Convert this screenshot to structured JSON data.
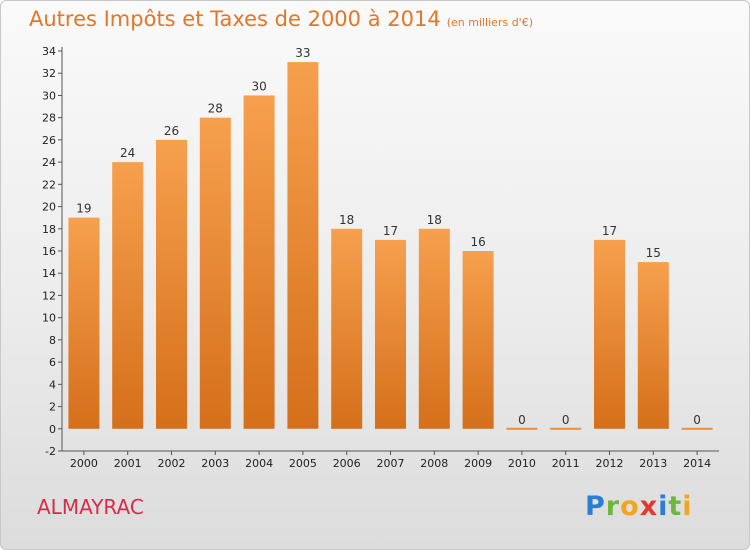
{
  "title": "Autres Impôts et Taxes de 2000 à 2014",
  "subtitle": "(en milliers d'€)",
  "commune": "ALMAYRAC",
  "logo": {
    "text": "Proxiti",
    "letters": [
      {
        "ch": "P",
        "color": "#2a7fd4"
      },
      {
        "ch": "r",
        "color": "#6cb83a"
      },
      {
        "ch": "o",
        "color": "#f3a51e"
      },
      {
        "ch": "x",
        "color": "#e2382e"
      },
      {
        "ch": "i",
        "color": "#2a7fd4"
      },
      {
        "ch": "t",
        "color": "#6cb83a"
      },
      {
        "ch": "i",
        "color": "#f3a51e"
      }
    ]
  },
  "chart_data": {
    "type": "bar",
    "categories": [
      "2000",
      "2001",
      "2002",
      "2003",
      "2004",
      "2005",
      "2006",
      "2007",
      "2008",
      "2009",
      "2010",
      "2011",
      "2012",
      "2013",
      "2014"
    ],
    "values": [
      19,
      24,
      26,
      28,
      30,
      33,
      18,
      17,
      18,
      16,
      0,
      0,
      17,
      15,
      0
    ],
    "data_labels": [
      "19",
      "24",
      "26",
      "28",
      "30",
      "33",
      "18",
      "17",
      "18",
      "16",
      "0",
      "0",
      "17",
      "15",
      "0"
    ],
    "ylim": [
      -2,
      34
    ],
    "yticks": [
      -2,
      0,
      2,
      4,
      6,
      8,
      10,
      12,
      14,
      16,
      18,
      20,
      22,
      24,
      26,
      28,
      30,
      32,
      34
    ],
    "bar_color": "#ee8e38",
    "grid": false,
    "legend": "none"
  }
}
